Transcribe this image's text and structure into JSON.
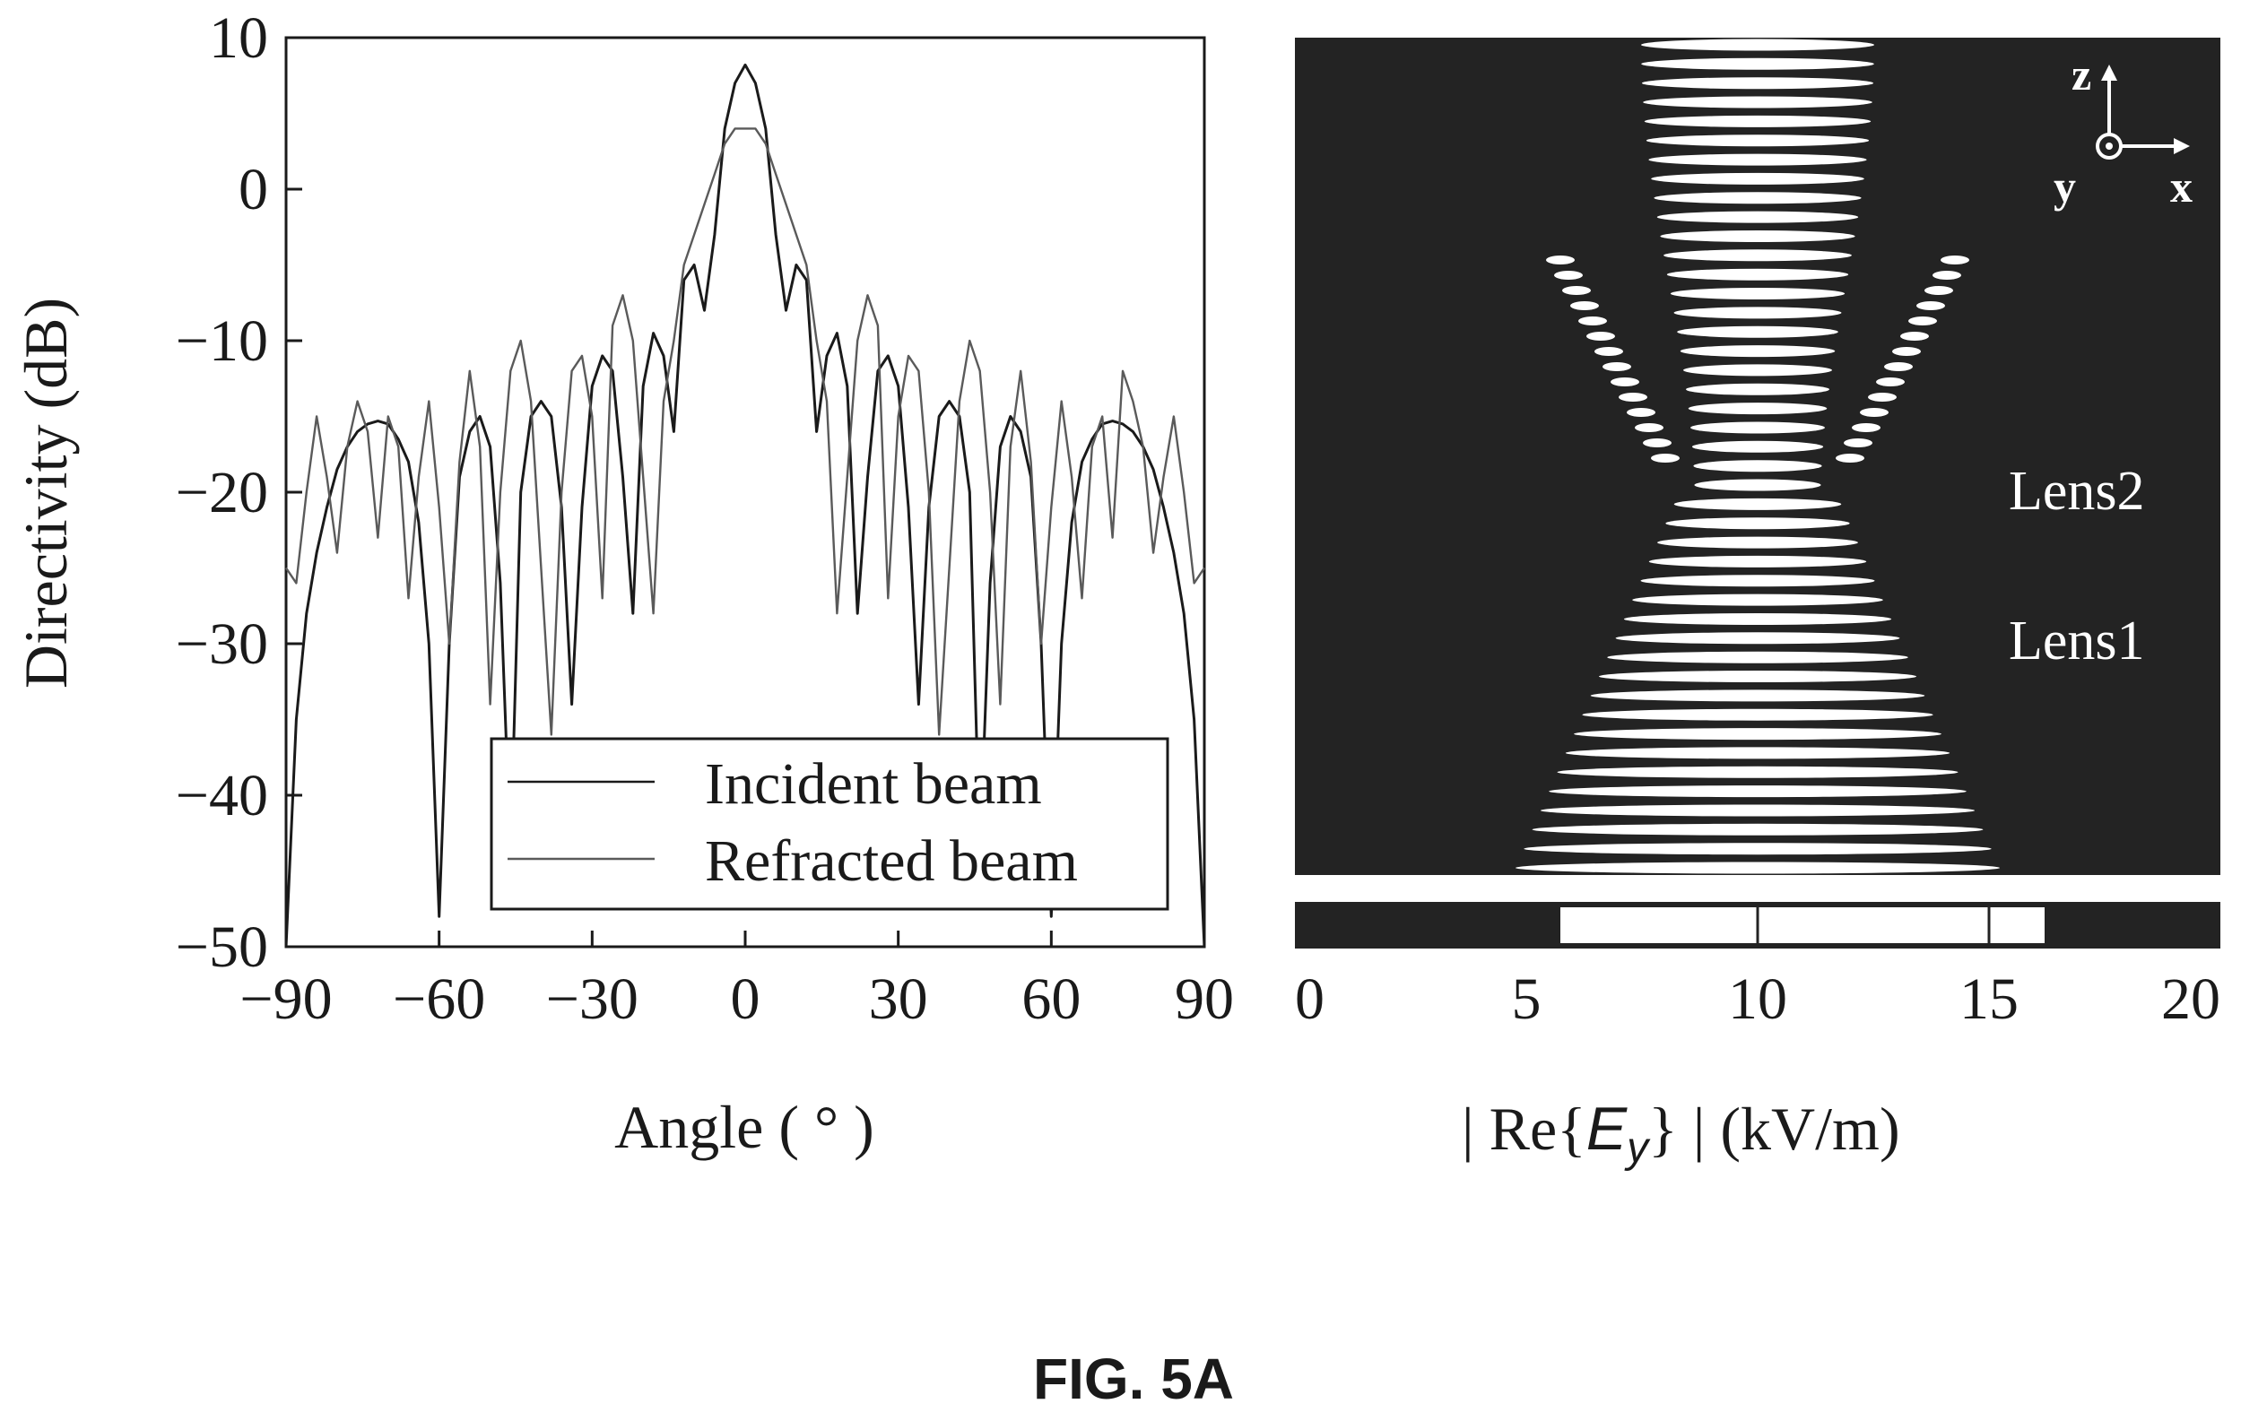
{
  "figure_label": "FIG. 5A",
  "chart_data": [
    {
      "type": "line",
      "title": "",
      "xlabel": "Angle ( ° )",
      "ylabel": "Directivity (dB)",
      "xlim": [
        -90,
        90
      ],
      "ylim": [
        -50,
        10
      ],
      "xticks": [
        -90,
        -60,
        -30,
        0,
        30,
        60,
        90
      ],
      "yticks": [
        10,
        0,
        -10,
        -20,
        -30,
        -40,
        -50
      ],
      "xtick_labels": [
        "−90",
        "−60",
        "−30",
        "0",
        "30",
        "60",
        "90"
      ],
      "ytick_labels": [
        "10",
        "0",
        "−10",
        "−20",
        "−30",
        "−40",
        "−50"
      ],
      "grid": false,
      "legend": "bottom-right",
      "series": [
        {
          "name": "Incident beam",
          "color": "#1a1a1a",
          "x": [
            -90,
            -88,
            -86,
            -84,
            -82,
            -80,
            -78,
            -76,
            -74,
            -72,
            -70,
            -68,
            -66,
            -64,
            -62,
            -60,
            -58,
            -56,
            -54,
            -52,
            -50,
            -48,
            -46,
            -44,
            -42,
            -40,
            -38,
            -36,
            -34,
            -32,
            -30,
            -28,
            -26,
            -24,
            -22,
            -20,
            -18,
            -16,
            -14,
            -12,
            -10,
            -8,
            -6,
            -4,
            -2,
            0,
            2,
            4,
            6,
            8,
            10,
            12,
            14,
            16,
            18,
            20,
            22,
            24,
            26,
            28,
            30,
            32,
            34,
            36,
            38,
            40,
            42,
            44,
            46,
            48,
            50,
            52,
            54,
            56,
            58,
            60,
            62,
            64,
            66,
            68,
            70,
            72,
            74,
            76,
            78,
            80,
            82,
            84,
            86,
            88,
            90
          ],
          "y": [
            -50,
            -35,
            -28,
            -24,
            -21,
            -18.5,
            -17,
            -16,
            -15.5,
            -15.3,
            -15.5,
            -16.5,
            -18,
            -22,
            -30,
            -48,
            -30,
            -19,
            -16,
            -15,
            -17,
            -26,
            -44,
            -20,
            -15,
            -14,
            -15,
            -21,
            -34,
            -21,
            -13,
            -11,
            -12,
            -19,
            -28,
            -13,
            -9.5,
            -11,
            -16,
            -6,
            -5,
            -8,
            -3,
            4,
            7,
            8.2,
            7,
            4,
            -3,
            -8,
            -5,
            -6,
            -16,
            -11,
            -9.5,
            -13,
            -28,
            -19,
            -12,
            -11,
            -13,
            -21,
            -34,
            -21,
            -15,
            -14,
            -15,
            -20,
            -44,
            -26,
            -17,
            -15,
            -16,
            -19,
            -30,
            -48,
            -30,
            -22,
            -18,
            -16.5,
            -15.5,
            -15.3,
            -15.5,
            -16,
            -17,
            -18.5,
            -21,
            -24,
            -28,
            -35,
            -50
          ]
        },
        {
          "name": "Refracted beam",
          "color": "#5a5a5a",
          "x": [
            -90,
            -88,
            -86,
            -84,
            -82,
            -80,
            -78,
            -76,
            -74,
            -72,
            -70,
            -68,
            -66,
            -64,
            -62,
            -60,
            -58,
            -56,
            -54,
            -52,
            -50,
            -48,
            -46,
            -44,
            -42,
            -40,
            -38,
            -36,
            -34,
            -32,
            -30,
            -28,
            -26,
            -24,
            -22,
            -20,
            -18,
            -16,
            -14,
            -12,
            -10,
            -8,
            -6,
            -4,
            -2,
            0,
            2,
            4,
            6,
            8,
            10,
            12,
            14,
            16,
            18,
            20,
            22,
            24,
            26,
            28,
            30,
            32,
            34,
            36,
            38,
            40,
            42,
            44,
            46,
            48,
            50,
            52,
            54,
            56,
            58,
            60,
            62,
            64,
            66,
            68,
            70,
            72,
            74,
            76,
            78,
            80,
            82,
            84,
            86,
            88,
            90
          ],
          "y": [
            -25,
            -26,
            -20,
            -15,
            -19,
            -24,
            -17,
            -14,
            -16,
            -23,
            -15,
            -17,
            -27,
            -19,
            -14,
            -21,
            -30,
            -18,
            -12,
            -17,
            -34,
            -20,
            -12,
            -10,
            -14,
            -25,
            -36,
            -20,
            -12,
            -11,
            -15,
            -27,
            -9,
            -7,
            -10,
            -19,
            -28,
            -14,
            -10,
            -5,
            -3,
            -1,
            1,
            3,
            4,
            4,
            4,
            3,
            1,
            -1,
            -3,
            -5,
            -10,
            -14,
            -28,
            -19,
            -10,
            -7,
            -9,
            -27,
            -15,
            -11,
            -12,
            -20,
            -36,
            -25,
            -14,
            -10,
            -12,
            -20,
            -34,
            -17,
            -12,
            -18,
            -30,
            -21,
            -14,
            -19,
            -27,
            -17,
            -15,
            -23,
            -12,
            -14,
            -17,
            -24,
            -19,
            -15,
            -20,
            -26,
            -25
          ]
        }
      ]
    },
    {
      "type": "heatmap",
      "title": "",
      "colorbar_label_prefix": "| Re{",
      "colorbar_label_var": "E",
      "colorbar_label_sub": "y",
      "colorbar_label_suffix": "} |  (kV/m)",
      "colorbar_range": [
        0,
        20
      ],
      "colorbar_ticks": [
        "0",
        "5",
        "10",
        "15",
        "20"
      ],
      "annotations": [
        "Lens2",
        "Lens1"
      ],
      "axis_labels": {
        "z": "z",
        "y": "y",
        "x": "x"
      },
      "colors": {
        "background": "#232323",
        "fringe": "#ffffff"
      },
      "fringe_bands": 44
    }
  ]
}
